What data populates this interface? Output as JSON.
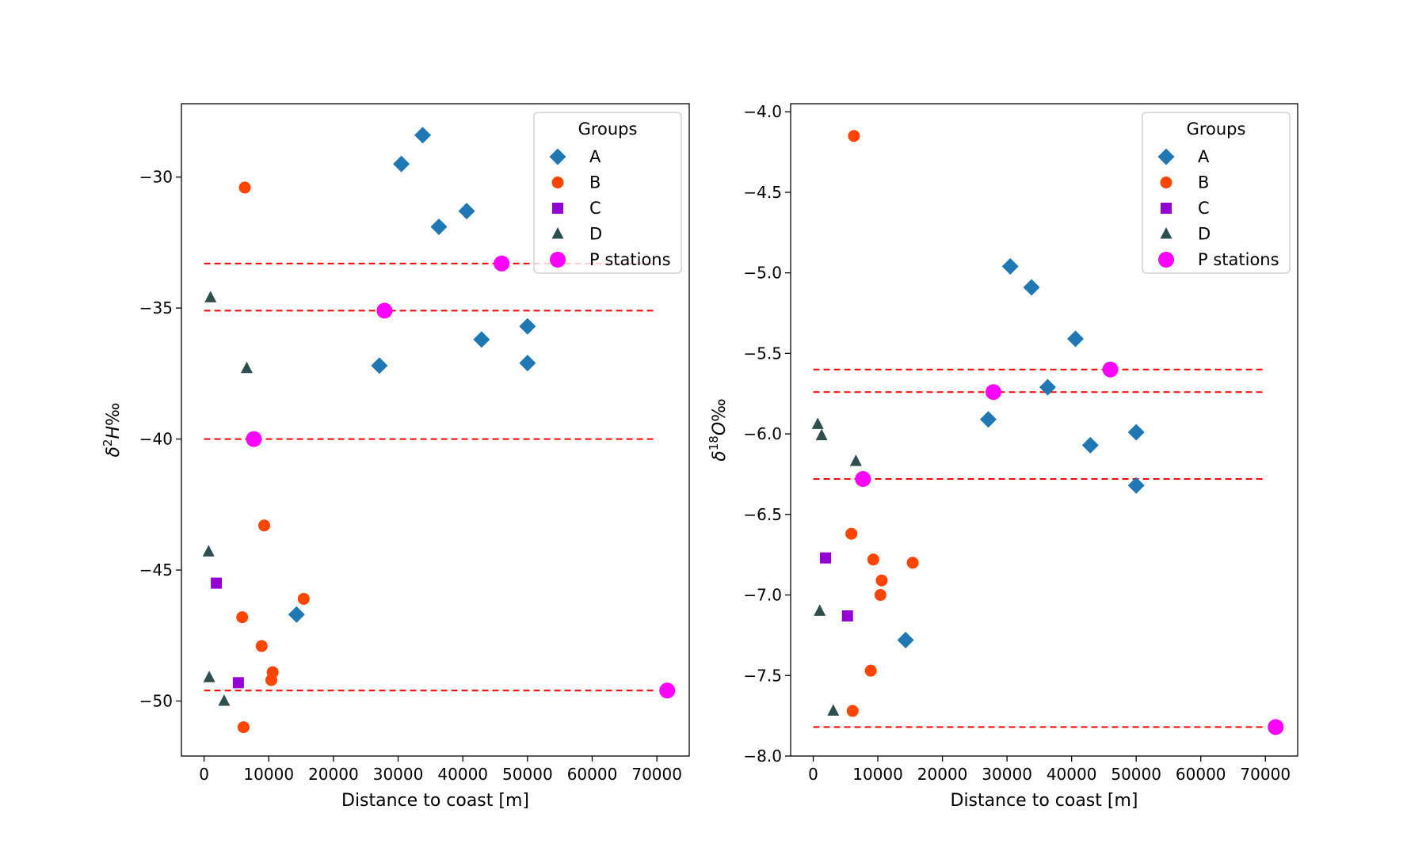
{
  "chart_data": [
    {
      "type": "scatter",
      "xlabel": "Distance to coast [m]",
      "ylabel": {
        "delta": "δ",
        "sup": "2",
        "species": "H",
        "unit": "‰"
      },
      "xlim": [
        -3500,
        75000
      ],
      "ylim": [
        -52.1,
        -27.2
      ],
      "xticks": [
        0,
        10000,
        20000,
        30000,
        40000,
        50000,
        60000,
        70000
      ],
      "yticks": [
        -50,
        -45,
        -40,
        -35,
        -30
      ],
      "grid": false,
      "legend": {
        "title": "Groups",
        "placement": "top-right"
      },
      "hlines": {
        "values": [
          -33.3,
          -35.1,
          -40.0,
          -49.6
        ],
        "xrange": [
          0,
          70000
        ],
        "color": "#ff0000",
        "style": "dashed"
      },
      "series": [
        {
          "name": "A",
          "marker": "diamond",
          "color": "#1f77b4",
          "points": [
            [
              30500,
              -29.5
            ],
            [
              33800,
              -28.4
            ],
            [
              36300,
              -31.9
            ],
            [
              40600,
              -31.3
            ],
            [
              27100,
              -37.2
            ],
            [
              42900,
              -36.2
            ],
            [
              50000,
              -35.7
            ],
            [
              50000,
              -37.1
            ],
            [
              14300,
              -46.7
            ]
          ]
        },
        {
          "name": "B",
          "marker": "circle",
          "color": "#ff4500",
          "points": [
            [
              6300,
              -30.4
            ],
            [
              9300,
              -43.3
            ],
            [
              15400,
              -46.1
            ],
            [
              5900,
              -46.8
            ],
            [
              8900,
              -47.9
            ],
            [
              10600,
              -48.9
            ],
            [
              10400,
              -49.2
            ],
            [
              6100,
              -51.0
            ]
          ]
        },
        {
          "name": "C",
          "marker": "square",
          "color": "#9400d3",
          "points": [
            [
              1900,
              -45.5
            ],
            [
              5300,
              -49.3
            ]
          ]
        },
        {
          "name": "D",
          "marker": "triangle",
          "color": "#2f4f4f",
          "points": [
            [
              1000,
              -34.6
            ],
            [
              6600,
              -37.3
            ],
            [
              700,
              -44.3
            ],
            [
              800,
              -49.1
            ],
            [
              3100,
              -50.0
            ]
          ]
        },
        {
          "name": "P stations",
          "marker": "circle",
          "color": "#ff00ff",
          "size": "large",
          "points": [
            [
              46000,
              -33.3
            ],
            [
              27900,
              -35.1
            ],
            [
              7700,
              -40.0
            ],
            [
              71600,
              -49.6
            ]
          ]
        }
      ]
    },
    {
      "type": "scatter",
      "xlabel": "Distance to coast [m]",
      "ylabel": {
        "delta": "δ",
        "sup": "18",
        "species": "O",
        "unit": "‰"
      },
      "xlim": [
        -3500,
        75000
      ],
      "ylim": [
        -8.0,
        -3.95
      ],
      "xticks": [
        0,
        10000,
        20000,
        30000,
        40000,
        50000,
        60000,
        70000
      ],
      "yticks": [
        -8.0,
        -7.5,
        -7.0,
        -6.5,
        -6.0,
        -5.5,
        -5.0,
        -4.5,
        -4.0
      ],
      "ytick_labels": [
        "−8.0",
        "−7.5",
        "−7.0",
        "−6.5",
        "−6.0",
        "−5.5",
        "−5.0",
        "−4.5",
        "−4.0"
      ],
      "grid": false,
      "legend": {
        "title": "Groups",
        "placement": "top-right"
      },
      "hlines": {
        "values": [
          -5.6,
          -5.74,
          -6.28,
          -7.82
        ],
        "xrange": [
          0,
          70000
        ],
        "color": "#ff0000",
        "style": "dashed"
      },
      "series": [
        {
          "name": "A",
          "marker": "diamond",
          "color": "#1f77b4",
          "points": [
            [
              30500,
              -4.96
            ],
            [
              33800,
              -5.09
            ],
            [
              40600,
              -5.41
            ],
            [
              36300,
              -5.71
            ],
            [
              27100,
              -5.91
            ],
            [
              42900,
              -6.07
            ],
            [
              50000,
              -5.99
            ],
            [
              50000,
              -6.32
            ],
            [
              14300,
              -7.28
            ]
          ]
        },
        {
          "name": "B",
          "marker": "circle",
          "color": "#ff4500",
          "points": [
            [
              6300,
              -4.15
            ],
            [
              5900,
              -6.62
            ],
            [
              9300,
              -6.78
            ],
            [
              15400,
              -6.8
            ],
            [
              10600,
              -6.91
            ],
            [
              10400,
              -7.0
            ],
            [
              8900,
              -7.47
            ],
            [
              6100,
              -7.72
            ]
          ]
        },
        {
          "name": "C",
          "marker": "square",
          "color": "#9400d3",
          "points": [
            [
              1900,
              -6.77
            ],
            [
              5300,
              -7.13
            ]
          ]
        },
        {
          "name": "D",
          "marker": "triangle",
          "color": "#2f4f4f",
          "points": [
            [
              700,
              -5.94
            ],
            [
              1300,
              -6.01
            ],
            [
              6600,
              -6.17
            ],
            [
              1000,
              -7.1
            ],
            [
              3100,
              -7.72
            ]
          ]
        },
        {
          "name": "P stations",
          "marker": "circle",
          "color": "#ff00ff",
          "size": "large",
          "points": [
            [
              46000,
              -5.6
            ],
            [
              27900,
              -5.74
            ],
            [
              7700,
              -6.28
            ],
            [
              71600,
              -7.82
            ]
          ]
        }
      ]
    }
  ]
}
